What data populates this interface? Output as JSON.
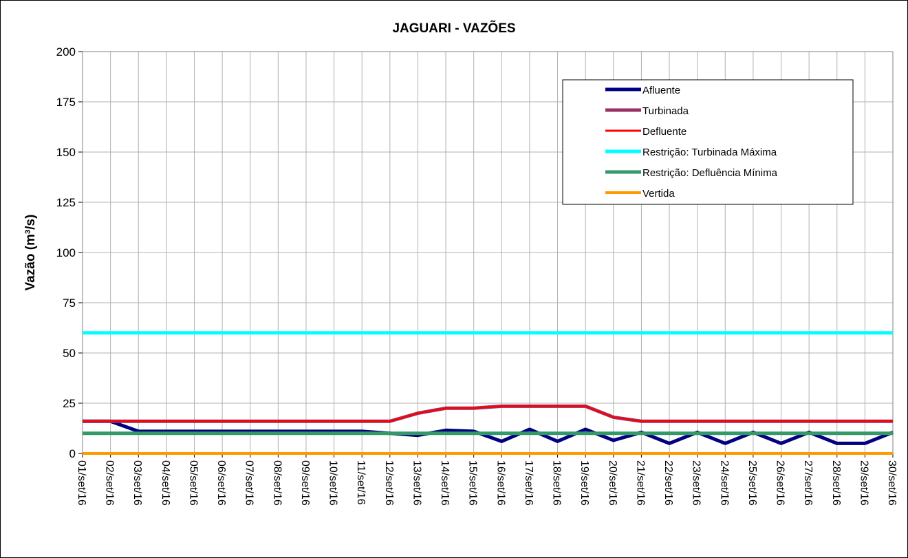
{
  "chart_data": {
    "type": "line",
    "title": "JAGUARI - VAZÕES",
    "y_label": "Vazão (m³/s)",
    "categories": [
      "01/set/16",
      "02/set/16",
      "03/set/16",
      "04/set/16",
      "05/set/16",
      "06/set/16",
      "07/set/16",
      "08/set/16",
      "09/set/16",
      "10/set/16",
      "11/set/16",
      "12/set/16",
      "13/set/16",
      "14/set/16",
      "15/set/16",
      "16/set/16",
      "17/set/16",
      "18/set/16",
      "19/set/16",
      "20/set/16",
      "21/set/16",
      "22/set/16",
      "23/set/16",
      "24/set/16",
      "25/set/16",
      "26/set/16",
      "27/set/16",
      "28/set/16",
      "29/set/16",
      "30/set/16"
    ],
    "series": [
      {
        "name": "Afluente",
        "color": "#000080",
        "values": [
          16,
          16,
          11,
          11,
          11,
          11,
          11,
          11,
          11,
          11,
          11,
          10,
          9,
          11.5,
          11,
          6,
          12,
          6,
          12,
          6.5,
          10.5,
          5,
          10.5,
          5,
          10.5,
          5,
          10.5,
          5,
          5,
          10.5
        ]
      },
      {
        "name": "Turbinada",
        "color": "#993366",
        "values": [
          16,
          16,
          16,
          16,
          16,
          16,
          16,
          16,
          16,
          16,
          16,
          16,
          20,
          22.5,
          22.5,
          23.5,
          23.5,
          23.5,
          23.5,
          18,
          16,
          16,
          16,
          16,
          16,
          16,
          16,
          16,
          16,
          16
        ]
      },
      {
        "name": "Defluente",
        "color": "#ff0000",
        "values": [
          16,
          16,
          16,
          16,
          16,
          16,
          16,
          16,
          16,
          16,
          16,
          16,
          20,
          22.5,
          22.5,
          23.5,
          23.5,
          23.5,
          23.5,
          18,
          16,
          16,
          16,
          16,
          16,
          16,
          16,
          16,
          16,
          16
        ]
      },
      {
        "name": "Restrição: Turbinada Máxima",
        "color": "#00ffff",
        "values": [
          60,
          60,
          60,
          60,
          60,
          60,
          60,
          60,
          60,
          60,
          60,
          60,
          60,
          60,
          60,
          60,
          60,
          60,
          60,
          60,
          60,
          60,
          60,
          60,
          60,
          60,
          60,
          60,
          60,
          60
        ]
      },
      {
        "name": "Restrição: Defluência Mínima",
        "color": "#339966",
        "values": [
          10,
          10,
          10,
          10,
          10,
          10,
          10,
          10,
          10,
          10,
          10,
          10,
          10,
          10,
          10,
          10,
          10,
          10,
          10,
          10,
          10,
          10,
          10,
          10,
          10,
          10,
          10,
          10,
          10,
          10
        ]
      },
      {
        "name": "Vertida",
        "color": "#ff9900",
        "values": [
          0,
          0,
          0,
          0,
          0,
          0,
          0,
          0,
          0,
          0,
          0,
          0,
          0,
          0,
          0,
          0,
          0,
          0,
          0,
          0,
          0,
          0,
          0,
          0,
          0,
          0,
          0,
          0,
          0,
          0
        ]
      }
    ],
    "ylim": [
      0,
      200
    ],
    "yticks": [
      0,
      25,
      50,
      75,
      100,
      125,
      150,
      175,
      200
    ],
    "grid": true,
    "legend": "upper right"
  }
}
